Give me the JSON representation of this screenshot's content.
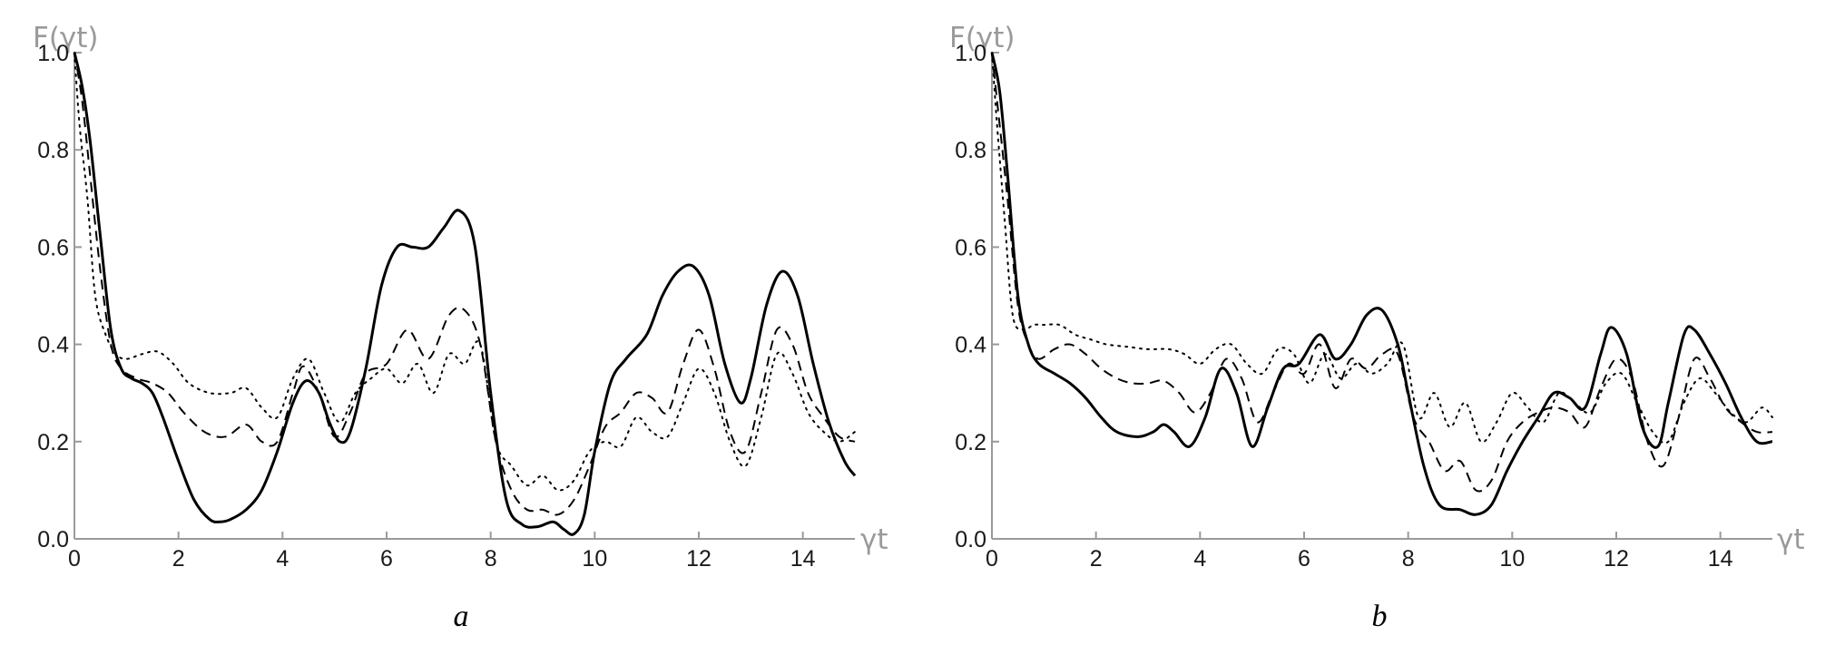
{
  "chart_data": [
    {
      "type": "line",
      "panel_label": "a",
      "xlabel": "γt",
      "ylabel": "F(γt)",
      "xlim": [
        0,
        15
      ],
      "ylim": [
        0,
        1
      ],
      "xticks": [
        "0",
        "2",
        "4",
        "6",
        "8",
        "10",
        "12",
        "14"
      ],
      "yticks": [
        "0.0",
        "0.2",
        "0.4",
        "0.6",
        "0.8",
        "1.0"
      ],
      "series": [
        {
          "style": "solid",
          "color": "#000000",
          "x": [
            0,
            0.15,
            0.3,
            0.5,
            0.7,
            0.9,
            1.1,
            1.3,
            1.5,
            1.7,
            2.0,
            2.3,
            2.6,
            2.8,
            3.0,
            3.3,
            3.6,
            3.9,
            4.2,
            4.45,
            4.7,
            4.9,
            5.1,
            5.3,
            5.6,
            5.9,
            6.2,
            6.5,
            6.8,
            7.1,
            7.4,
            7.7,
            8.0,
            8.3,
            8.6,
            8.9,
            9.2,
            9.4,
            9.6,
            9.8,
            10.0,
            10.3,
            10.6,
            11.0,
            11.3,
            11.6,
            11.9,
            12.2,
            12.5,
            12.8,
            13.0,
            13.3,
            13.6,
            13.9,
            14.2,
            14.5,
            14.8,
            15.0
          ],
          "y": [
            1.0,
            0.93,
            0.82,
            0.62,
            0.43,
            0.35,
            0.33,
            0.32,
            0.3,
            0.25,
            0.16,
            0.08,
            0.04,
            0.035,
            0.04,
            0.06,
            0.1,
            0.18,
            0.28,
            0.325,
            0.3,
            0.24,
            0.2,
            0.22,
            0.35,
            0.52,
            0.6,
            0.6,
            0.6,
            0.64,
            0.675,
            0.6,
            0.3,
            0.08,
            0.03,
            0.025,
            0.035,
            0.02,
            0.01,
            0.05,
            0.18,
            0.32,
            0.37,
            0.42,
            0.5,
            0.55,
            0.56,
            0.5,
            0.36,
            0.28,
            0.33,
            0.48,
            0.55,
            0.5,
            0.36,
            0.24,
            0.16,
            0.13
          ]
        },
        {
          "style": "dashed",
          "color": "#000000",
          "x": [
            0,
            0.15,
            0.3,
            0.5,
            0.7,
            0.9,
            1.2,
            1.5,
            1.8,
            2.1,
            2.5,
            2.9,
            3.3,
            3.6,
            3.9,
            4.2,
            4.4,
            4.7,
            5.0,
            5.3,
            5.6,
            6.0,
            6.4,
            6.8,
            7.2,
            7.5,
            7.8,
            8.1,
            8.4,
            8.7,
            9.0,
            9.3,
            9.6,
            9.9,
            10.2,
            10.5,
            10.8,
            11.1,
            11.4,
            11.7,
            12.0,
            12.3,
            12.6,
            12.9,
            13.2,
            13.5,
            13.8,
            14.1,
            14.4,
            14.7,
            15.0
          ],
          "y": [
            1.0,
            0.9,
            0.75,
            0.55,
            0.4,
            0.35,
            0.33,
            0.32,
            0.3,
            0.26,
            0.22,
            0.21,
            0.235,
            0.2,
            0.2,
            0.3,
            0.355,
            0.3,
            0.21,
            0.26,
            0.34,
            0.36,
            0.43,
            0.37,
            0.46,
            0.47,
            0.4,
            0.2,
            0.1,
            0.06,
            0.06,
            0.05,
            0.08,
            0.15,
            0.23,
            0.26,
            0.3,
            0.29,
            0.26,
            0.36,
            0.43,
            0.35,
            0.22,
            0.18,
            0.3,
            0.43,
            0.4,
            0.3,
            0.25,
            0.21,
            0.2
          ]
        },
        {
          "style": "dotted",
          "color": "#000000",
          "x": [
            0,
            0.1,
            0.25,
            0.4,
            0.6,
            0.8,
            1.0,
            1.3,
            1.6,
            1.9,
            2.2,
            2.6,
            3.0,
            3.3,
            3.6,
            3.9,
            4.2,
            4.5,
            4.8,
            5.1,
            5.4,
            5.7,
            6.0,
            6.3,
            6.6,
            6.9,
            7.2,
            7.5,
            7.8,
            8.1,
            8.4,
            8.7,
            9.0,
            9.3,
            9.6,
            9.9,
            10.2,
            10.5,
            10.8,
            11.1,
            11.4,
            11.7,
            12.0,
            12.3,
            12.6,
            12.9,
            13.2,
            13.5,
            13.8,
            14.1,
            14.4,
            14.7,
            15.0
          ],
          "y": [
            1.0,
            0.85,
            0.7,
            0.5,
            0.42,
            0.38,
            0.37,
            0.38,
            0.385,
            0.36,
            0.32,
            0.3,
            0.3,
            0.31,
            0.27,
            0.25,
            0.33,
            0.37,
            0.3,
            0.24,
            0.3,
            0.33,
            0.35,
            0.32,
            0.36,
            0.3,
            0.38,
            0.36,
            0.4,
            0.2,
            0.15,
            0.11,
            0.13,
            0.1,
            0.12,
            0.18,
            0.2,
            0.19,
            0.25,
            0.22,
            0.21,
            0.28,
            0.35,
            0.3,
            0.2,
            0.15,
            0.25,
            0.38,
            0.34,
            0.26,
            0.22,
            0.2,
            0.22
          ]
        }
      ]
    },
    {
      "type": "line",
      "panel_label": "b",
      "xlabel": "γt",
      "ylabel": "F(γt)",
      "xlim": [
        0,
        15
      ],
      "ylim": [
        0,
        1
      ],
      "xticks": [
        "0",
        "2",
        "4",
        "6",
        "8",
        "10",
        "12",
        "14"
      ],
      "yticks": [
        "0.0",
        "0.2",
        "0.4",
        "0.6",
        "0.8",
        "1.0"
      ],
      "series": [
        {
          "style": "solid",
          "color": "#000000",
          "x": [
            0,
            0.15,
            0.3,
            0.5,
            0.7,
            0.9,
            1.2,
            1.5,
            1.8,
            2.1,
            2.4,
            2.8,
            3.1,
            3.3,
            3.5,
            3.8,
            4.1,
            4.4,
            4.7,
            5.0,
            5.3,
            5.6,
            5.9,
            6.3,
            6.6,
            6.9,
            7.2,
            7.5,
            7.8,
            8.0,
            8.3,
            8.6,
            9.0,
            9.3,
            9.6,
            9.9,
            10.2,
            10.5,
            10.8,
            11.1,
            11.4,
            11.7,
            11.9,
            12.2,
            12.5,
            12.8,
            13.0,
            13.3,
            13.5,
            13.8,
            14.1,
            14.4,
            14.7,
            15.0
          ],
          "y": [
            1.0,
            0.92,
            0.75,
            0.5,
            0.4,
            0.36,
            0.34,
            0.32,
            0.29,
            0.25,
            0.22,
            0.21,
            0.22,
            0.235,
            0.22,
            0.19,
            0.25,
            0.35,
            0.3,
            0.19,
            0.27,
            0.35,
            0.36,
            0.42,
            0.37,
            0.4,
            0.46,
            0.47,
            0.4,
            0.3,
            0.15,
            0.07,
            0.06,
            0.05,
            0.07,
            0.14,
            0.2,
            0.25,
            0.3,
            0.29,
            0.27,
            0.38,
            0.435,
            0.38,
            0.23,
            0.19,
            0.28,
            0.42,
            0.43,
            0.38,
            0.32,
            0.25,
            0.2,
            0.2
          ]
        },
        {
          "style": "dashed",
          "color": "#000000",
          "x": [
            0,
            0.12,
            0.3,
            0.5,
            0.7,
            0.9,
            1.2,
            1.5,
            1.8,
            2.1,
            2.4,
            2.7,
            3.0,
            3.3,
            3.6,
            3.9,
            4.2,
            4.5,
            4.8,
            5.1,
            5.4,
            5.7,
            6.0,
            6.3,
            6.6,
            6.9,
            7.2,
            7.5,
            7.8,
            8.1,
            8.4,
            8.7,
            9.0,
            9.3,
            9.6,
            9.9,
            10.2,
            10.5,
            10.8,
            11.1,
            11.4,
            11.7,
            12.0,
            12.3,
            12.6,
            12.9,
            13.2,
            13.5,
            13.8,
            14.1,
            14.4,
            14.7,
            15.0
          ],
          "y": [
            1.0,
            0.88,
            0.7,
            0.48,
            0.4,
            0.37,
            0.39,
            0.4,
            0.38,
            0.35,
            0.33,
            0.32,
            0.32,
            0.325,
            0.3,
            0.26,
            0.3,
            0.37,
            0.33,
            0.24,
            0.3,
            0.36,
            0.34,
            0.4,
            0.31,
            0.37,
            0.35,
            0.38,
            0.38,
            0.25,
            0.2,
            0.14,
            0.16,
            0.1,
            0.12,
            0.2,
            0.24,
            0.26,
            0.27,
            0.26,
            0.23,
            0.31,
            0.37,
            0.33,
            0.2,
            0.15,
            0.25,
            0.37,
            0.33,
            0.27,
            0.24,
            0.22,
            0.22
          ]
        },
        {
          "style": "dotted",
          "color": "#000000",
          "x": [
            0,
            0.1,
            0.25,
            0.4,
            0.6,
            0.8,
            1.0,
            1.3,
            1.6,
            1.9,
            2.2,
            2.6,
            3.0,
            3.4,
            3.7,
            4.0,
            4.3,
            4.6,
            4.9,
            5.2,
            5.5,
            5.8,
            6.1,
            6.4,
            6.7,
            7.0,
            7.3,
            7.6,
            7.9,
            8.2,
            8.5,
            8.8,
            9.1,
            9.4,
            9.7,
            10.0,
            10.3,
            10.6,
            10.9,
            11.2,
            11.5,
            11.8,
            12.1,
            12.4,
            12.7,
            13.0,
            13.3,
            13.6,
            13.9,
            14.2,
            14.5,
            14.8,
            15.0
          ],
          "y": [
            1.0,
            0.85,
            0.65,
            0.46,
            0.43,
            0.44,
            0.44,
            0.44,
            0.42,
            0.41,
            0.4,
            0.395,
            0.39,
            0.39,
            0.38,
            0.36,
            0.39,
            0.4,
            0.36,
            0.34,
            0.39,
            0.38,
            0.32,
            0.38,
            0.33,
            0.36,
            0.34,
            0.36,
            0.4,
            0.25,
            0.3,
            0.23,
            0.28,
            0.2,
            0.24,
            0.3,
            0.27,
            0.24,
            0.3,
            0.28,
            0.26,
            0.32,
            0.34,
            0.28,
            0.22,
            0.2,
            0.28,
            0.33,
            0.3,
            0.26,
            0.24,
            0.27,
            0.25
          ]
        }
      ]
    }
  ]
}
